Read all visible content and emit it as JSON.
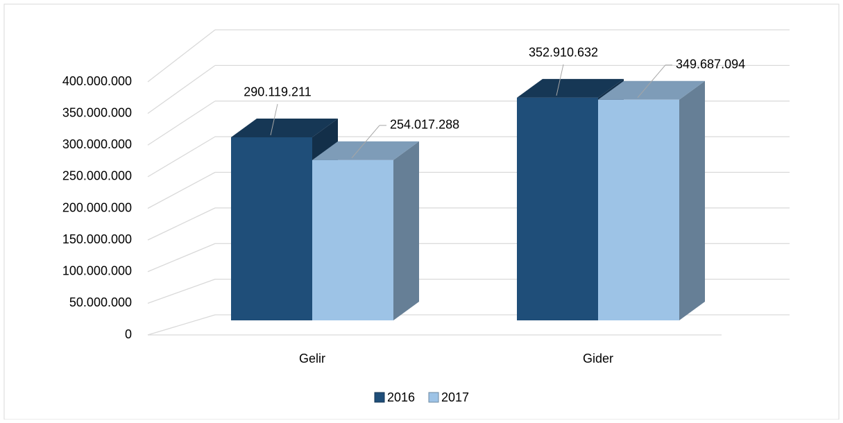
{
  "chart_data": {
    "type": "bar3d",
    "categories": [
      "Gelir",
      "Gider"
    ],
    "series": [
      {
        "name": "2016",
        "color": "#1f4e79",
        "values": [
          290119211,
          352910632
        ],
        "value_labels": [
          "290.119.211",
          "352.910.632"
        ]
      },
      {
        "name": "2017",
        "color": "#9dc3e6",
        "values": [
          254017288,
          349687094
        ],
        "value_labels": [
          "254.017.288",
          "349.687.094"
        ]
      }
    ],
    "ylim": [
      0,
      400000000
    ],
    "yticks": [
      0,
      {
        "value": 50000000,
        "label": "50.000.000"
      },
      {
        "value": 100000000,
        "label": "100.000.000"
      },
      {
        "value": 150000000,
        "label": "150.000.000"
      },
      {
        "value": 200000000,
        "label": "200.000.000"
      },
      {
        "value": 250000000,
        "label": "250.000.000"
      },
      {
        "value": 300000000,
        "label": "300.000.000"
      },
      {
        "value": 350000000,
        "label": "350.000.000"
      },
      {
        "value": 400000000,
        "label": "400.000.000"
      }
    ],
    "grid": true,
    "legend": "bottom"
  }
}
